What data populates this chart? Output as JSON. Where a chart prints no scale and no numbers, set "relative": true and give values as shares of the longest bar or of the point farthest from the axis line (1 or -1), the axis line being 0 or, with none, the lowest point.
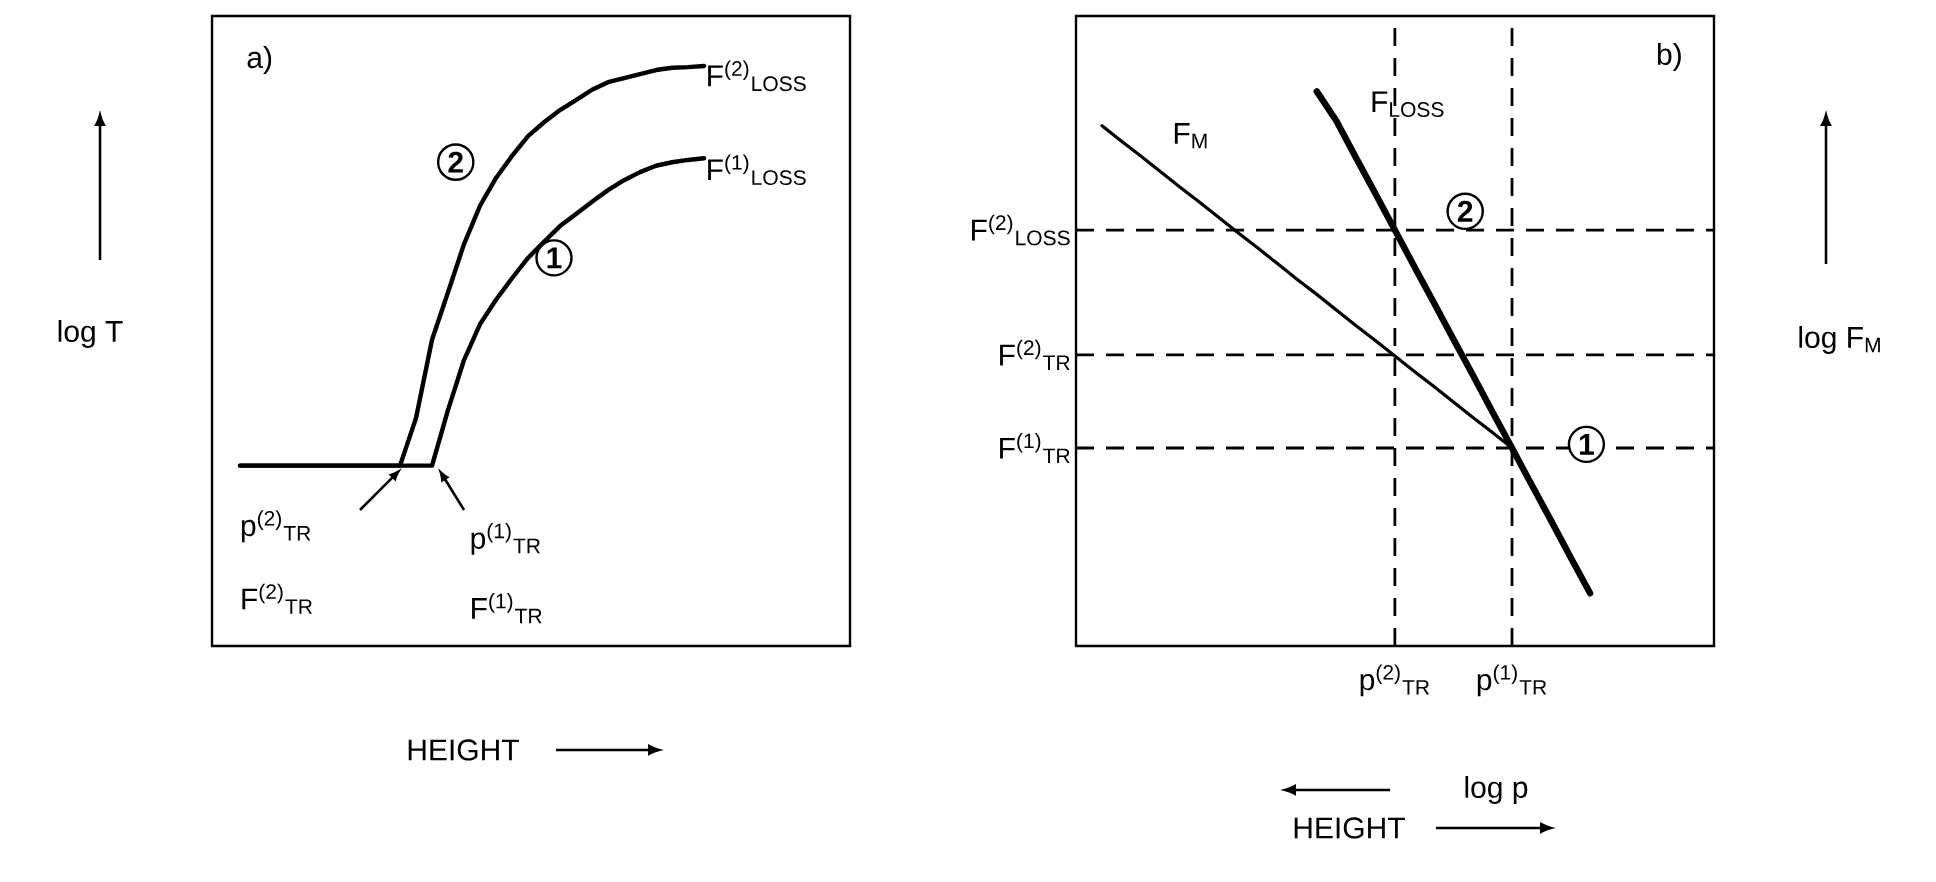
{
  "chart_data": [
    {
      "type": "line",
      "relative": true,
      "xlabel": "HEIGHT",
      "ylabel": "log T",
      "legend": false,
      "grid": false,
      "categories": [
        null,
        null,
        null,
        null,
        null,
        null,
        null,
        null,
        null,
        null,
        null,
        null,
        null,
        null,
        null,
        null,
        null,
        null,
        null,
        null,
        null,
        null,
        null,
        null,
        null,
        null,
        null,
        null,
        null,
        null
      ],
      "series": [
        {
          "name": "2",
          "color": "#000000",
          "values": [
            0.311,
            0.311,
            0.311,
            0.311,
            0.311,
            0.311,
            0.311,
            0.311,
            0.311,
            0.311,
            0.311,
            0.393,
            0.528,
            0.61,
            0.693,
            0.759,
            0.807,
            0.845,
            0.879,
            0.903,
            0.924,
            0.941,
            0.959,
            0.972,
            0.979,
            0.986,
            0.993,
            0.997,
            0.998,
            1
          ]
        },
        {
          "name": "1",
          "color": "#000000",
          "values": [
            0.311,
            0.311,
            0.311,
            0.311,
            0.311,
            0.311,
            0.311,
            0.311,
            0.311,
            0.311,
            0.311,
            0.311,
            0.311,
            0.407,
            0.493,
            0.555,
            0.597,
            0.634,
            0.669,
            0.697,
            0.724,
            0.745,
            0.766,
            0.786,
            0.803,
            0.817,
            0.828,
            0.834,
            0.838,
            0.841
          ]
        }
      ],
      "annotations": [
        "a)",
        "F$^{(2)}$$_{LOSS}$",
        "F$^{(1)}$$_{LOSS}$",
        "p$^{(2)}$$_{TR}$",
        "F$^{(2)}$$_{TR}$",
        "p$^{(1)}$$_{TR}$",
        "F$^{(1)}$$_{TR}$"
      ]
    },
    {
      "type": "line",
      "relative": true,
      "xlabel": "log p",
      "ylabel": "log F$_{M}$",
      "legend": false,
      "grid": "x",
      "categories": [
        null,
        null,
        null,
        null,
        null,
        null,
        null,
        null,
        null,
        null,
        null,
        null,
        null,
        null,
        null,
        "p$^{(2)}$$_{TR}$",
        null,
        null,
        null,
        null,
        null,
        "p$^{(1)}$$_{TR}$",
        null,
        null,
        null,
        null,
        null
      ],
      "series": [
        {
          "name": "F$_{M}$",
          "color": "#000000",
          "values": [
            0.938,
            0.91,
            0.883,
            0.855,
            0.827,
            0.8,
            0.772,
            0.744,
            0.717,
            0.689,
            0.661,
            0.634,
            0.606,
            0.578,
            0.551,
            0.523,
            0.495,
            0.468,
            0.44,
            0.412,
            0.385,
            0.357,
            null,
            null,
            null,
            null,
            null
          ]
        },
        {
          "name": "F$_{LOSS}$",
          "color": "#000000",
          "values": [
            null,
            null,
            null,
            null,
            null,
            null,
            null,
            null,
            null,
            null,
            null,
            1.0,
            0.947,
            0.881,
            0.816,
            0.75,
            0.684,
            0.619,
            0.553,
            0.488,
            0.422,
            0.357,
            0.291,
            0.226,
            0.16,
            0.095,
            null
          ]
        }
      ],
      "ref_lines": [
        {
          "axis": "y",
          "value": 0.75,
          "label": "F$^{(2)}$$_{LOSS}$",
          "line_style": "dashed"
        },
        {
          "axis": "y",
          "value": 0.525,
          "label": "F$^{(2)}$$_{TR}$",
          "line_style": "dashed"
        },
        {
          "axis": "y",
          "value": 0.357,
          "label": "F$^{(1)}$$_{TR}$",
          "line_style": "dashed"
        }
      ],
      "annotations": [
        "b)",
        "2",
        "1",
        "HEIGHT"
      ]
    }
  ]
}
